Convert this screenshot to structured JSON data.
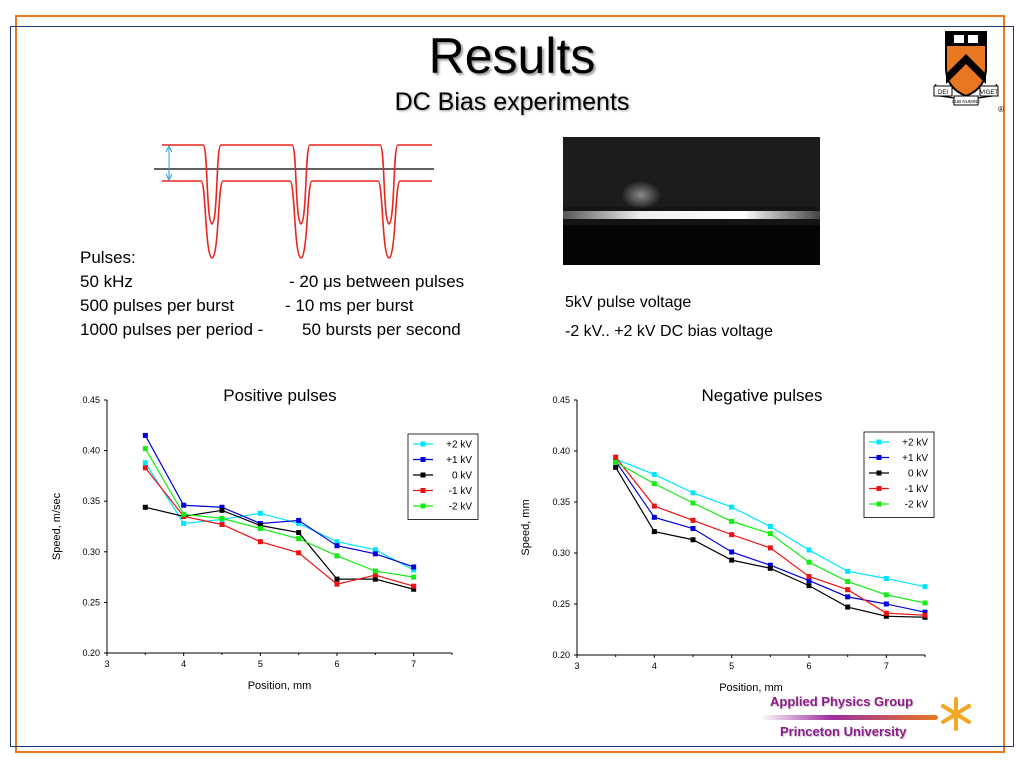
{
  "slide": {
    "title": "Results",
    "subtitle": "DC Bias experiments"
  },
  "pulses": {
    "heading": "Pulses:",
    "lines": [
      {
        "left": "50 kHz",
        "right": "-  20 μs between pulses"
      },
      {
        "left": "500 pulses per burst",
        "right": "-  10 ms per burst"
      },
      {
        "left": "1000 pulses per period -",
        "right": "50 bursts per second"
      }
    ]
  },
  "experiment": {
    "line1": "5kV pulse voltage",
    "line2": "-2 kV.. +2 kV DC bias voltage"
  },
  "branding": {
    "group": "Applied Physics Group",
    "university": "Princeton University",
    "logo_icon": "princeton-shield-icon",
    "motto_left": "DEI",
    "motto_center": "SUB NUMINE",
    "motto_right": "VIGET",
    "registered": "®"
  },
  "colors": {
    "frame_orange": "#e87722",
    "frame_blue": "#1f3a7a",
    "pulse_red": "#e8261c",
    "bias_blue": "#2a9de0",
    "brand_purple": "#8e1b8a"
  },
  "chart_data": [
    {
      "type": "line",
      "title": "Positive pulses",
      "xlabel": "Position, mm",
      "ylabel": "Speed, m/sec",
      "xlim": [
        3,
        7.5
      ],
      "ylim": [
        0.2,
        0.45
      ],
      "xticks": [
        3,
        4,
        5,
        6,
        7
      ],
      "xtick_labels": [
        "3",
        "4",
        "5",
        "6",
        "7"
      ],
      "yticks": [
        0.2,
        0.25,
        0.3,
        0.35,
        0.4,
        0.45
      ],
      "ytick_labels": [
        "0.20",
        "0.25",
        "0.30",
        "0.35",
        "0.40",
        "0.45"
      ],
      "grid": false,
      "legend": "top-right",
      "x": [
        3.5,
        4,
        4.5,
        5,
        5.5,
        6,
        6.5,
        7
      ],
      "series": [
        {
          "name": "+2 kV",
          "color": "#00e5ff",
          "values": [
            0.388,
            0.328,
            0.332,
            0.338,
            0.328,
            0.31,
            0.302,
            0.282
          ]
        },
        {
          "name": "+1 kV",
          "color": "#0000dd",
          "values": [
            0.415,
            0.346,
            0.344,
            0.328,
            0.331,
            0.306,
            0.298,
            0.285
          ]
        },
        {
          "name": "0 kV",
          "color": "#000000",
          "values": [
            0.344,
            0.335,
            0.341,
            0.326,
            0.319,
            0.273,
            0.273,
            0.263
          ]
        },
        {
          "name": "-1 kV",
          "color": "#ee1111",
          "values": [
            0.383,
            0.335,
            0.327,
            0.31,
            0.299,
            0.268,
            0.277,
            0.266
          ]
        },
        {
          "name": "-2 kV",
          "color": "#11ee11",
          "values": [
            0.402,
            0.337,
            0.333,
            0.323,
            0.313,
            0.296,
            0.281,
            0.275
          ]
        }
      ]
    },
    {
      "type": "line",
      "title": "Negative pulses",
      "xlabel": "Position, mm",
      "ylabel": "Speed, mm",
      "xlim": [
        3,
        7.5
      ],
      "ylim": [
        0.2,
        0.45
      ],
      "xticks": [
        3,
        4,
        5,
        6,
        7
      ],
      "xtick_labels": [
        "3",
        "4",
        "5",
        "6",
        "7"
      ],
      "yticks": [
        0.2,
        0.25,
        0.3,
        0.35,
        0.4,
        0.45
      ],
      "ytick_labels": [
        "0.20",
        "0.25",
        "0.30",
        "0.35",
        "0.40",
        "0.45"
      ],
      "grid": false,
      "legend": "top-right",
      "x": [
        3.5,
        4,
        4.5,
        5,
        5.5,
        6,
        6.5,
        7,
        7.5
      ],
      "series": [
        {
          "name": "+2 kV",
          "color": "#00e5ff",
          "values": [
            0.392,
            0.377,
            0.359,
            0.345,
            0.326,
            0.303,
            0.282,
            0.275,
            0.267
          ]
        },
        {
          "name": "+1 kV",
          "color": "#0000dd",
          "values": [
            0.39,
            0.335,
            0.324,
            0.301,
            0.288,
            0.273,
            0.257,
            0.25,
            0.242
          ]
        },
        {
          "name": "0 kV",
          "color": "#000000",
          "values": [
            0.384,
            0.321,
            0.313,
            0.293,
            0.285,
            0.268,
            0.247,
            0.238,
            0.237
          ]
        },
        {
          "name": "-1 kV",
          "color": "#ee1111",
          "values": [
            0.394,
            0.346,
            0.332,
            0.318,
            0.305,
            0.277,
            0.264,
            0.241,
            0.239
          ]
        },
        {
          "name": "-2 kV",
          "color": "#11ee11",
          "values": [
            0.389,
            0.368,
            0.349,
            0.331,
            0.319,
            0.291,
            0.272,
            0.259,
            0.251
          ]
        }
      ]
    }
  ]
}
